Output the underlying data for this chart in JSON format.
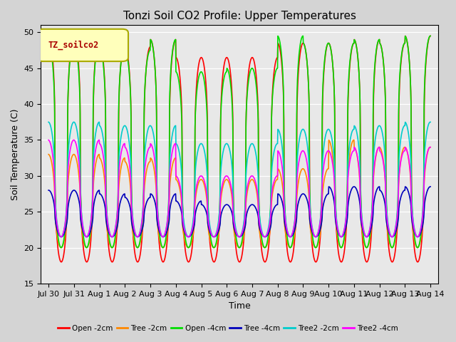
{
  "title": "Tonzi Soil CO2 Profile: Upper Temperatures",
  "xlabel": "Time",
  "ylabel": "Soil Temperature (C)",
  "ylim": [
    15,
    51
  ],
  "yticks": [
    15,
    20,
    25,
    30,
    35,
    40,
    45,
    50
  ],
  "series": [
    {
      "label": "Open -2cm",
      "color": "#ff0000",
      "lw": 1.2,
      "peak": 49.5,
      "trough": 18.0,
      "power": 3.0,
      "phase": 0.0
    },
    {
      "label": "Tree -2cm",
      "color": "#ff8800",
      "lw": 1.2,
      "peak": 33.0,
      "trough": 20.0,
      "power": 2.0,
      "phase": 0.05
    },
    {
      "label": "Open -4cm",
      "color": "#00dd00",
      "lw": 1.2,
      "peak": 48.5,
      "trough": 20.0,
      "power": 3.0,
      "phase": 0.03
    },
    {
      "label": "Tree -4cm",
      "color": "#0000bb",
      "lw": 1.2,
      "peak": 28.0,
      "trough": 21.5,
      "power": 1.8,
      "phase": 0.0
    },
    {
      "label": "Tree2 -2cm",
      "color": "#00cccc",
      "lw": 1.2,
      "peak": 37.5,
      "trough": 21.5,
      "power": 2.2,
      "phase": 0.04
    },
    {
      "label": "Tree2 -4cm",
      "color": "#ff00ff",
      "lw": 1.2,
      "peak": 35.0,
      "trough": 21.5,
      "power": 2.0,
      "phase": 0.06
    }
  ],
  "xtick_labels": [
    "Jul 30",
    "Jul 31",
    "Aug 1",
    "Aug 2",
    "Aug 3",
    "Aug 4",
    "Aug 5",
    "Aug 6",
    "Aug 7",
    "Aug 8",
    "Aug 9",
    "Aug 10",
    "Aug 11",
    "Aug 12",
    "Aug 13",
    "Aug 14"
  ],
  "legend_box_color": "#ffffbb",
  "legend_box_edge": "#aaaa00",
  "legend_box_label": "TZ_soilco2",
  "title_fontsize": 11,
  "axis_fontsize": 9,
  "tick_fontsize": 8,
  "fig_facecolor": "#d4d4d4",
  "ax_facecolor": "#e8e8e8",
  "grid_color": "#ffffff"
}
